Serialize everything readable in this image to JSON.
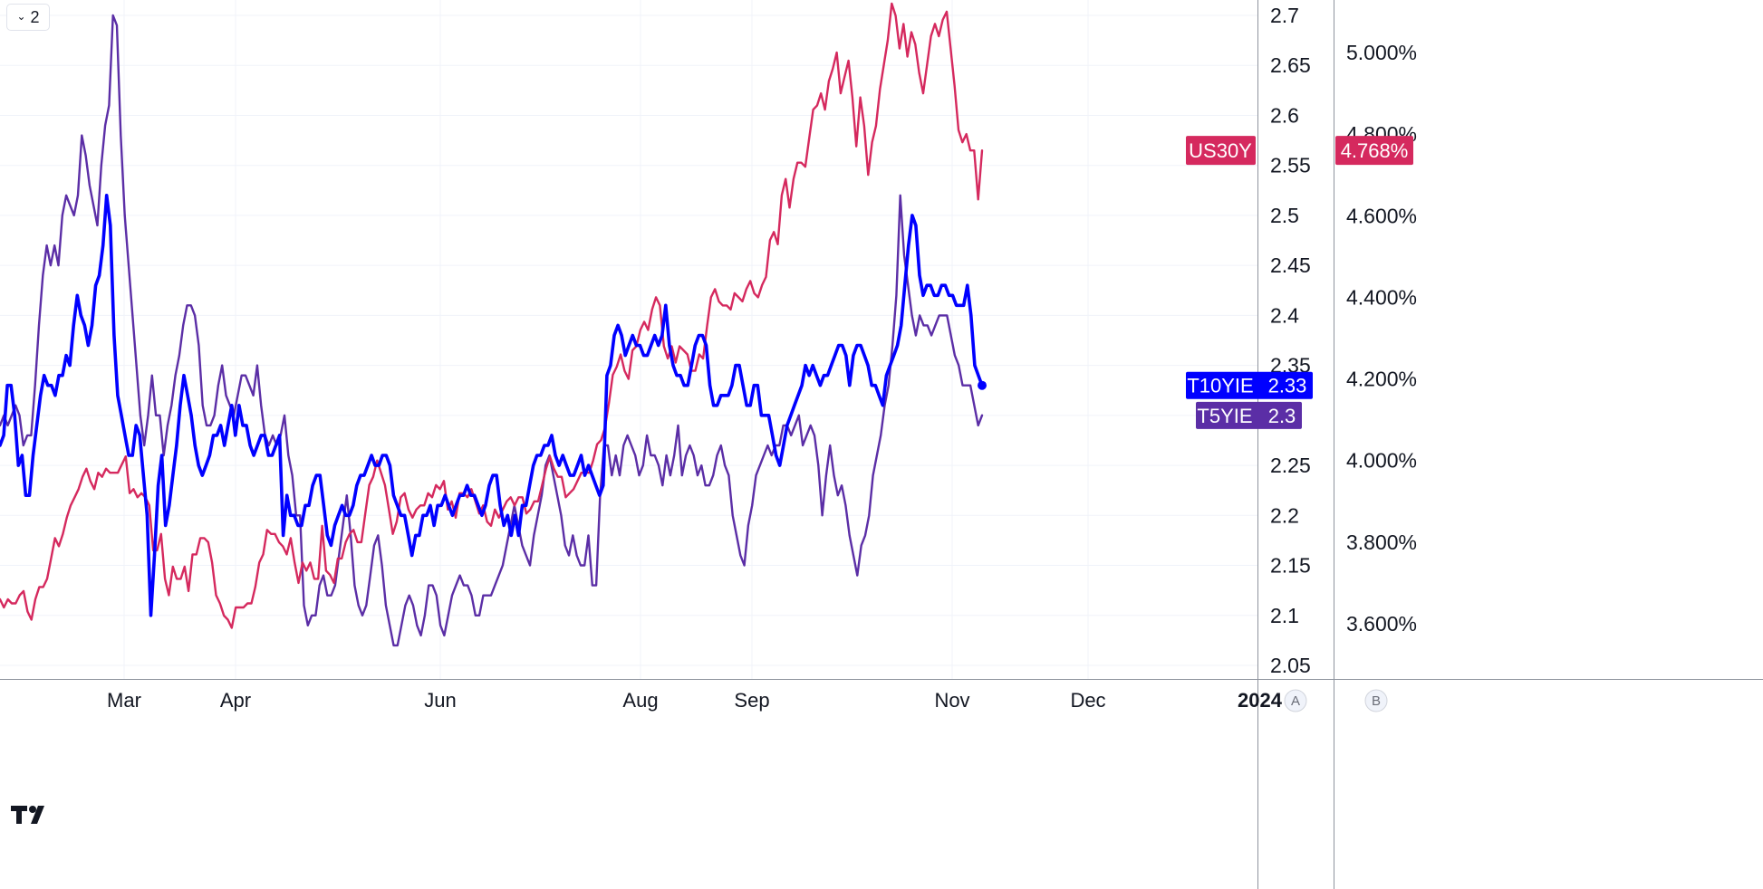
{
  "toolbar": {
    "collapse_label": "2"
  },
  "logo_icon": "tradingview-logo",
  "axis_a_badge": "A",
  "axis_b_badge": "B",
  "chart_data": {
    "type": "line",
    "x_labels": [
      "Mar",
      "Apr",
      "Jun",
      "Aug",
      "Sep",
      "Nov",
      "Dec",
      "2024"
    ],
    "axis_a": {
      "ticks": [
        "2.7",
        "2.65",
        "2.6",
        "2.55",
        "2.5",
        "2.45",
        "2.4",
        "2.35",
        "2.25",
        "2.2",
        "2.15",
        "2.1",
        "2.05"
      ],
      "ylim": [
        2.02,
        2.72
      ]
    },
    "axis_b": {
      "ticks": [
        "5.000%",
        "4.800%",
        "4.600%",
        "4.400%",
        "4.200%",
        "4.000%",
        "3.800%",
        "3.600%"
      ],
      "ylim": [
        3.55,
        5.15
      ]
    },
    "grid": true,
    "colors": {
      "us30y": "#d5295e",
      "t10yie": "#0000ff",
      "t5yie": "#5b2ea6",
      "grid": "#f0f3fa",
      "axis": "#8f949e"
    },
    "series": [
      {
        "name": "US30Y",
        "axis": "b",
        "color": "#d5295e",
        "width": 2.4,
        "last_tag": "4.768%",
        "tag_label": "US30Y",
        "values": [
          3.66,
          3.64,
          3.66,
          3.65,
          3.65,
          3.67,
          3.68,
          3.63,
          3.61,
          3.66,
          3.69,
          3.69,
          3.71,
          3.76,
          3.81,
          3.79,
          3.82,
          3.86,
          3.89,
          3.91,
          3.93,
          3.96,
          3.98,
          3.95,
          3.93,
          3.97,
          3.96,
          3.98,
          3.97,
          3.97,
          3.97,
          3.99,
          4.01,
          3.92,
          3.93,
          3.91,
          3.92,
          3.91,
          3.89,
          3.78,
          3.78,
          3.82,
          3.71,
          3.67,
          3.74,
          3.71,
          3.71,
          3.74,
          3.68,
          3.77,
          3.77,
          3.81,
          3.81,
          3.8,
          3.75,
          3.67,
          3.65,
          3.62,
          3.61,
          3.59,
          3.64,
          3.64,
          3.64,
          3.65,
          3.65,
          3.69,
          3.75,
          3.77,
          3.83,
          3.82,
          3.82,
          3.8,
          3.79,
          3.77,
          3.81,
          3.75,
          3.7,
          3.75,
          3.73,
          3.75,
          3.71,
          3.71,
          3.84,
          3.73,
          3.72,
          3.7,
          3.76,
          3.76,
          3.8,
          3.82,
          3.83,
          3.8,
          3.8,
          3.87,
          3.94,
          3.96,
          4.0,
          3.97,
          3.94,
          3.88,
          3.82,
          3.85,
          3.91,
          3.92,
          3.88,
          3.86,
          3.88,
          3.89,
          3.89,
          3.92,
          3.91,
          3.94,
          3.93,
          3.95,
          3.88,
          3.9,
          3.86,
          3.92,
          3.92,
          3.91,
          3.93,
          3.9,
          3.87,
          3.89,
          3.85,
          3.84,
          3.88,
          3.86,
          3.88,
          3.9,
          3.91,
          3.89,
          3.91,
          3.91,
          3.87,
          3.88,
          3.9,
          3.9,
          3.94,
          3.98,
          4.01,
          3.98,
          3.96,
          3.96,
          3.91,
          3.92,
          3.93,
          3.95,
          3.97,
          3.97,
          3.97,
          4.0,
          4.04,
          4.05,
          4.08,
          4.14,
          4.21,
          4.23,
          4.26,
          4.22,
          4.2,
          4.27,
          4.28,
          4.32,
          4.34,
          4.32,
          4.37,
          4.4,
          4.38,
          4.28,
          4.25,
          4.28,
          4.24,
          4.28,
          4.27,
          4.26,
          4.22,
          4.22,
          4.26,
          4.25,
          4.33,
          4.4,
          4.42,
          4.39,
          4.38,
          4.38,
          4.37,
          4.41,
          4.4,
          4.39,
          4.42,
          4.44,
          4.41,
          4.4,
          4.43,
          4.45,
          4.54,
          4.56,
          4.53,
          4.65,
          4.69,
          4.62,
          4.69,
          4.73,
          4.73,
          4.72,
          4.79,
          4.86,
          4.87,
          4.9,
          4.86,
          4.93,
          4.96,
          5.0,
          4.9,
          4.94,
          4.98,
          4.89,
          4.77,
          4.89,
          4.82,
          4.7,
          4.78,
          4.82,
          4.91,
          4.97,
          5.03,
          5.12,
          5.09,
          5.01,
          5.07,
          4.99,
          5.05,
          5.02,
          4.95,
          4.9,
          4.97,
          5.04,
          5.07,
          5.04,
          5.08,
          5.1,
          5.01,
          4.92,
          4.81,
          4.78,
          4.8,
          4.76,
          4.76,
          4.64,
          4.76
        ]
      },
      {
        "name": "T10YIE",
        "axis": "a",
        "color": "#0000ff",
        "width": 3.6,
        "last_tag": "2.33",
        "tag_label": "T10YIE",
        "values": [
          2.27,
          2.28,
          2.33,
          2.33,
          2.3,
          2.25,
          2.26,
          2.22,
          2.22,
          2.26,
          2.29,
          2.32,
          2.34,
          2.33,
          2.33,
          2.32,
          2.34,
          2.34,
          2.36,
          2.35,
          2.39,
          2.42,
          2.4,
          2.39,
          2.37,
          2.39,
          2.43,
          2.44,
          2.47,
          2.52,
          2.49,
          2.38,
          2.32,
          2.3,
          2.28,
          2.26,
          2.26,
          2.29,
          2.28,
          2.24,
          2.2,
          2.1,
          2.16,
          2.23,
          2.26,
          2.19,
          2.21,
          2.24,
          2.27,
          2.31,
          2.34,
          2.32,
          2.3,
          2.27,
          2.25,
          2.24,
          2.25,
          2.26,
          2.28,
          2.28,
          2.29,
          2.27,
          2.29,
          2.31,
          2.28,
          2.31,
          2.29,
          2.29,
          2.27,
          2.26,
          2.27,
          2.28,
          2.28,
          2.26,
          2.26,
          2.27,
          2.28,
          2.18,
          2.22,
          2.2,
          2.2,
          2.19,
          2.19,
          2.21,
          2.21,
          2.23,
          2.24,
          2.24,
          2.21,
          2.18,
          2.17,
          2.19,
          2.2,
          2.21,
          2.2,
          2.2,
          2.21,
          2.23,
          2.24,
          2.24,
          2.25,
          2.26,
          2.25,
          2.25,
          2.26,
          2.26,
          2.25,
          2.22,
          2.21,
          2.2,
          2.2,
          2.18,
          2.16,
          2.18,
          2.18,
          2.2,
          2.2,
          2.21,
          2.19,
          2.21,
          2.21,
          2.22,
          2.21,
          2.2,
          2.21,
          2.22,
          2.22,
          2.23,
          2.22,
          2.22,
          2.21,
          2.2,
          2.21,
          2.23,
          2.24,
          2.24,
          2.21,
          2.19,
          2.2,
          2.18,
          2.2,
          2.18,
          2.21,
          2.21,
          2.23,
          2.25,
          2.26,
          2.26,
          2.27,
          2.27,
          2.28,
          2.26,
          2.25,
          2.26,
          2.25,
          2.24,
          2.24,
          2.25,
          2.26,
          2.24,
          2.25,
          2.24,
          2.23,
          2.22,
          2.23,
          2.34,
          2.35,
          2.38,
          2.39,
          2.38,
          2.36,
          2.37,
          2.38,
          2.37,
          2.37,
          2.36,
          2.36,
          2.37,
          2.38,
          2.37,
          2.38,
          2.41,
          2.37,
          2.35,
          2.34,
          2.34,
          2.33,
          2.33,
          2.35,
          2.37,
          2.38,
          2.38,
          2.37,
          2.33,
          2.31,
          2.31,
          2.32,
          2.32,
          2.32,
          2.33,
          2.35,
          2.35,
          2.33,
          2.31,
          2.31,
          2.33,
          2.33,
          2.3,
          2.3,
          2.3,
          2.28,
          2.26,
          2.25,
          2.27,
          2.29,
          2.3,
          2.31,
          2.32,
          2.33,
          2.35,
          2.34,
          2.35,
          2.34,
          2.33,
          2.34,
          2.34,
          2.35,
          2.36,
          2.37,
          2.37,
          2.36,
          2.33,
          2.36,
          2.37,
          2.37,
          2.36,
          2.35,
          2.33,
          2.33,
          2.32,
          2.31,
          2.34,
          2.35,
          2.36,
          2.37,
          2.39,
          2.43,
          2.47,
          2.5,
          2.49,
          2.44,
          2.42,
          2.43,
          2.43,
          2.42,
          2.42,
          2.43,
          2.43,
          2.42,
          2.42,
          2.41,
          2.41,
          2.41,
          2.43,
          2.4,
          2.35,
          2.34,
          2.33
        ]
      },
      {
        "name": "T5YIE",
        "axis": "a",
        "color": "#5b2ea6",
        "width": 2.4,
        "last_tag": "2.3",
        "tag_label": "T5YIE",
        "values": [
          2.29,
          2.3,
          2.29,
          2.3,
          2.31,
          2.3,
          2.27,
          2.28,
          2.28,
          2.33,
          2.39,
          2.44,
          2.47,
          2.45,
          2.47,
          2.45,
          2.5,
          2.52,
          2.51,
          2.5,
          2.52,
          2.58,
          2.56,
          2.53,
          2.51,
          2.49,
          2.55,
          2.59,
          2.61,
          2.7,
          2.69,
          2.58,
          2.5,
          2.45,
          2.4,
          2.35,
          2.3,
          2.27,
          2.3,
          2.34,
          2.3,
          2.3,
          2.26,
          2.29,
          2.31,
          2.34,
          2.36,
          2.39,
          2.41,
          2.41,
          2.4,
          2.37,
          2.31,
          2.29,
          2.29,
          2.3,
          2.33,
          2.35,
          2.32,
          2.31,
          2.3,
          2.32,
          2.34,
          2.34,
          2.33,
          2.32,
          2.35,
          2.31,
          2.28,
          2.27,
          2.28,
          2.27,
          2.28,
          2.3,
          2.26,
          2.24,
          2.2,
          2.2,
          2.11,
          2.09,
          2.1,
          2.1,
          2.13,
          2.14,
          2.12,
          2.12,
          2.13,
          2.16,
          2.19,
          2.22,
          2.18,
          2.13,
          2.11,
          2.1,
          2.11,
          2.14,
          2.17,
          2.18,
          2.15,
          2.11,
          2.09,
          2.07,
          2.07,
          2.09,
          2.11,
          2.12,
          2.11,
          2.09,
          2.08,
          2.1,
          2.13,
          2.13,
          2.12,
          2.09,
          2.08,
          2.1,
          2.12,
          2.13,
          2.14,
          2.13,
          2.13,
          2.12,
          2.1,
          2.1,
          2.12,
          2.12,
          2.12,
          2.13,
          2.14,
          2.15,
          2.17,
          2.19,
          2.21,
          2.19,
          2.17,
          2.16,
          2.15,
          2.18,
          2.2,
          2.22,
          2.25,
          2.26,
          2.24,
          2.22,
          2.2,
          2.17,
          2.16,
          2.18,
          2.16,
          2.15,
          2.15,
          2.18,
          2.13,
          2.13,
          2.22,
          2.27,
          2.27,
          2.24,
          2.26,
          2.24,
          2.27,
          2.28,
          2.27,
          2.26,
          2.24,
          2.25,
          2.28,
          2.26,
          2.26,
          2.25,
          2.23,
          2.26,
          2.24,
          2.26,
          2.29,
          2.24,
          2.26,
          2.27,
          2.26,
          2.24,
          2.25,
          2.23,
          2.23,
          2.24,
          2.26,
          2.27,
          2.25,
          2.24,
          2.2,
          2.18,
          2.16,
          2.15,
          2.19,
          2.21,
          2.24,
          2.25,
          2.26,
          2.27,
          2.26,
          2.27,
          2.27,
          2.29,
          2.29,
          2.28,
          2.29,
          2.3,
          2.27,
          2.28,
          2.29,
          2.28,
          2.25,
          2.2,
          2.24,
          2.27,
          2.24,
          2.22,
          2.23,
          2.21,
          2.18,
          2.16,
          2.14,
          2.17,
          2.18,
          2.2,
          2.24,
          2.26,
          2.28,
          2.31,
          2.33,
          2.37,
          2.42,
          2.52,
          2.46,
          2.43,
          2.4,
          2.38,
          2.4,
          2.39,
          2.39,
          2.38,
          2.39,
          2.4,
          2.4,
          2.4,
          2.38,
          2.36,
          2.35,
          2.33,
          2.33,
          2.33,
          2.31,
          2.29,
          2.3
        ]
      }
    ]
  }
}
